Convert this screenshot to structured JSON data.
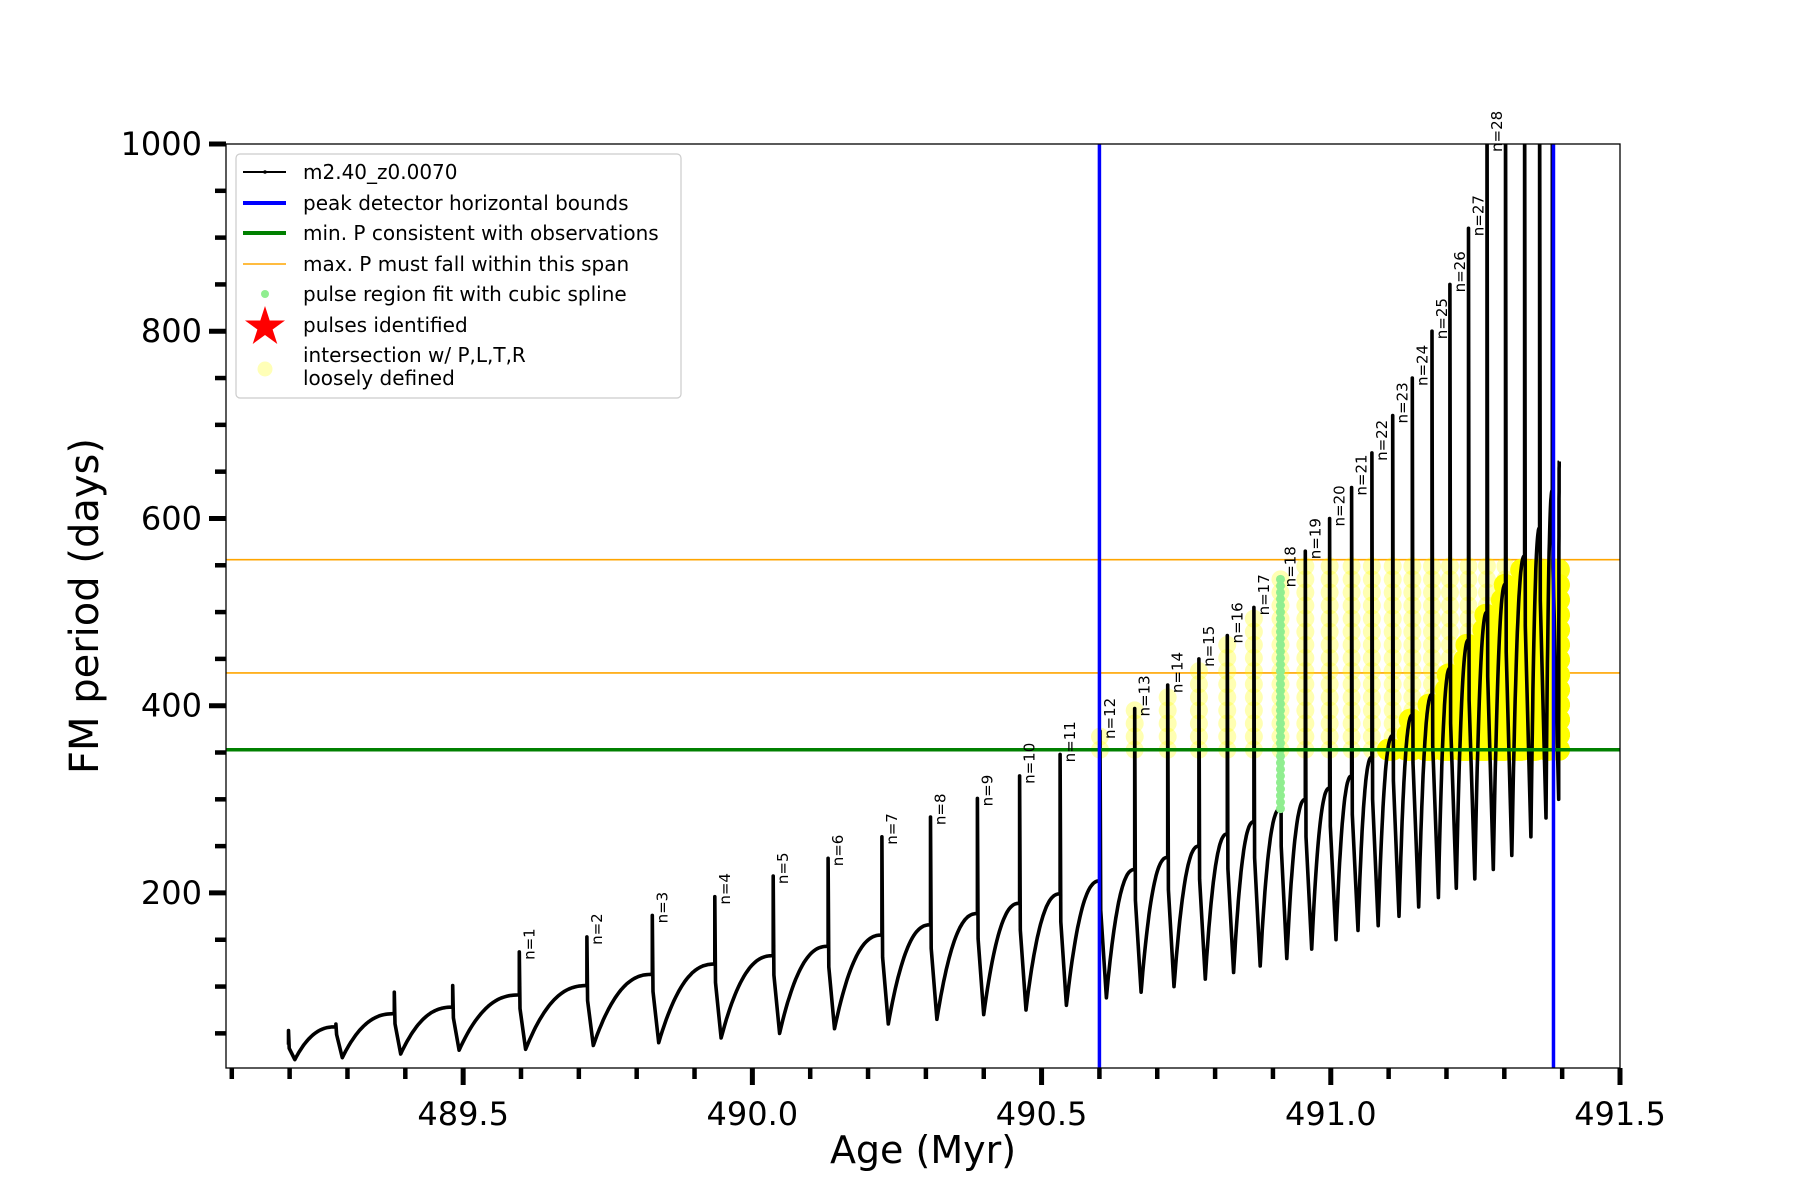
{
  "chart_data": {
    "type": "line",
    "title": "",
    "xlabel": "Age (Myr)",
    "ylabel": "FM period (days)",
    "xlim": [
      489.09,
      491.5
    ],
    "ylim": [
      13,
      1000
    ],
    "xticks": [
      489.5,
      490.0,
      490.5,
      491.0,
      491.5
    ],
    "xtick_labels": [
      "489.5",
      "490.0",
      "490.5",
      "491.0",
      "491.5"
    ],
    "yticks": [
      200,
      400,
      600,
      800,
      1000
    ],
    "ytick_labels": [
      "200",
      "400",
      "600",
      "800",
      "1000"
    ],
    "grid": false,
    "legend_placement": "upper-left",
    "series_name": "m2.40_z0.0070",
    "pulses": [
      {
        "age": 489.198,
        "pre_max": 38,
        "peak": 53,
        "post_min": 22,
        "label": ""
      },
      {
        "age": 489.28,
        "pre_max": 57,
        "peak": 60,
        "post_min": 24,
        "label": ""
      },
      {
        "age": 489.381,
        "pre_max": 71,
        "peak": 94,
        "post_min": 28,
        "label": ""
      },
      {
        "age": 489.482,
        "pre_max": 78,
        "peak": 101,
        "post_min": 32,
        "label": ""
      },
      {
        "age": 489.597,
        "pre_max": 91,
        "peak": 137,
        "post_min": 33,
        "label": "n=1"
      },
      {
        "age": 489.714,
        "pre_max": 101,
        "peak": 153,
        "post_min": 37,
        "label": "n=2"
      },
      {
        "age": 489.827,
        "pre_max": 113,
        "peak": 176,
        "post_min": 40,
        "label": "n=3"
      },
      {
        "age": 489.935,
        "pre_max": 124,
        "peak": 196,
        "post_min": 45,
        "label": "n=4"
      },
      {
        "age": 490.036,
        "pre_max": 133,
        "peak": 218,
        "post_min": 50,
        "label": "n=5"
      },
      {
        "age": 490.131,
        "pre_max": 143,
        "peak": 237,
        "post_min": 55,
        "label": "n=6"
      },
      {
        "age": 490.224,
        "pre_max": 155,
        "peak": 260,
        "post_min": 60,
        "label": "n=7"
      },
      {
        "age": 490.308,
        "pre_max": 166,
        "peak": 281,
        "post_min": 65,
        "label": "n=8"
      },
      {
        "age": 490.389,
        "pre_max": 178,
        "peak": 301,
        "post_min": 70,
        "label": "n=9"
      },
      {
        "age": 490.462,
        "pre_max": 189,
        "peak": 325,
        "post_min": 75,
        "label": "n=10"
      },
      {
        "age": 490.532,
        "pre_max": 199,
        "peak": 348,
        "post_min": 80,
        "label": "n=11"
      },
      {
        "age": 490.601,
        "pre_max": 213,
        "peak": 373,
        "post_min": 88,
        "label": "n=12"
      },
      {
        "age": 490.661,
        "pre_max": 225,
        "peak": 397,
        "post_min": 94,
        "label": "n=13"
      },
      {
        "age": 490.718,
        "pre_max": 238,
        "peak": 422,
        "post_min": 100,
        "label": "n=14"
      },
      {
        "age": 490.772,
        "pre_max": 250,
        "peak": 450,
        "post_min": 108,
        "label": "n=15"
      },
      {
        "age": 490.821,
        "pre_max": 263,
        "peak": 475,
        "post_min": 115,
        "label": "n=16"
      },
      {
        "age": 490.867,
        "pre_max": 276,
        "peak": 505,
        "post_min": 122,
        "label": "n=17"
      },
      {
        "age": 490.913,
        "pre_max": 290,
        "peak": 535,
        "post_min": 130,
        "label": "n=18"
      },
      {
        "age": 490.956,
        "pre_max": 300,
        "peak": 565,
        "post_min": 140,
        "label": "n=19"
      },
      {
        "age": 490.998,
        "pre_max": 312,
        "peak": 600,
        "post_min": 150,
        "label": "n=20"
      },
      {
        "age": 491.036,
        "pre_max": 325,
        "peak": 633,
        "post_min": 160,
        "label": "n=21"
      },
      {
        "age": 491.071,
        "pre_max": 345,
        "peak": 670,
        "post_min": 165,
        "label": "n=22"
      },
      {
        "age": 491.107,
        "pre_max": 368,
        "peak": 710,
        "post_min": 175,
        "label": "n=23"
      },
      {
        "age": 491.141,
        "pre_max": 390,
        "peak": 750,
        "post_min": 185,
        "label": "n=24"
      },
      {
        "age": 491.175,
        "pre_max": 412,
        "peak": 800,
        "post_min": 195,
        "label": "n=25"
      },
      {
        "age": 491.206,
        "pre_max": 440,
        "peak": 850,
        "post_min": 205,
        "label": "n=26"
      },
      {
        "age": 491.238,
        "pre_max": 470,
        "peak": 910,
        "post_min": 215,
        "label": "n=27"
      },
      {
        "age": 491.27,
        "pre_max": 500,
        "peak": 1100,
        "post_min": 225,
        "label": "n=28"
      },
      {
        "age": 491.302,
        "pre_max": 530,
        "peak": 1100,
        "post_min": 240,
        "label": ""
      },
      {
        "age": 491.335,
        "pre_max": 560,
        "peak": 1100,
        "post_min": 260,
        "label": ""
      },
      {
        "age": 491.361,
        "pre_max": 590,
        "peak": 1100,
        "post_min": 280,
        "label": ""
      },
      {
        "age": 491.383,
        "pre_max": 630,
        "peak": 1100,
        "post_min": 300,
        "label": ""
      }
    ],
    "track_end": {
      "age": 491.395,
      "value": 661
    },
    "peak_detector_bounds": [
      490.6,
      491.385
    ],
    "min_period_observed": 353,
    "max_period_span": [
      435,
      556
    ],
    "spline_fit_pulse": "n=18",
    "colors": {
      "track": "#000000",
      "peak_bounds": "#0000ff",
      "min_period": "#008000",
      "max_period_span": "#ffa500",
      "spline_fit": "#90ee90",
      "pulses_identified": "#ff0000",
      "intersection": "#ffff00"
    }
  },
  "legend": {
    "items": [
      {
        "label": "m2.40_z0.0070",
        "marker": "line-with-dot"
      },
      {
        "label": "peak detector horizontal bounds",
        "marker": "thick-line"
      },
      {
        "label": "min. P consistent with observations",
        "marker": "thick-line"
      },
      {
        "label": "max. P must fall within this span",
        "marker": "thin-line"
      },
      {
        "label": "pulse region fit with cubic spline",
        "marker": "dot"
      },
      {
        "label": "pulses identified",
        "marker": "star"
      },
      {
        "label_line1": "intersection w/ P,L,T,R",
        "label_line2": "loosely defined",
        "marker": "circle"
      }
    ]
  }
}
